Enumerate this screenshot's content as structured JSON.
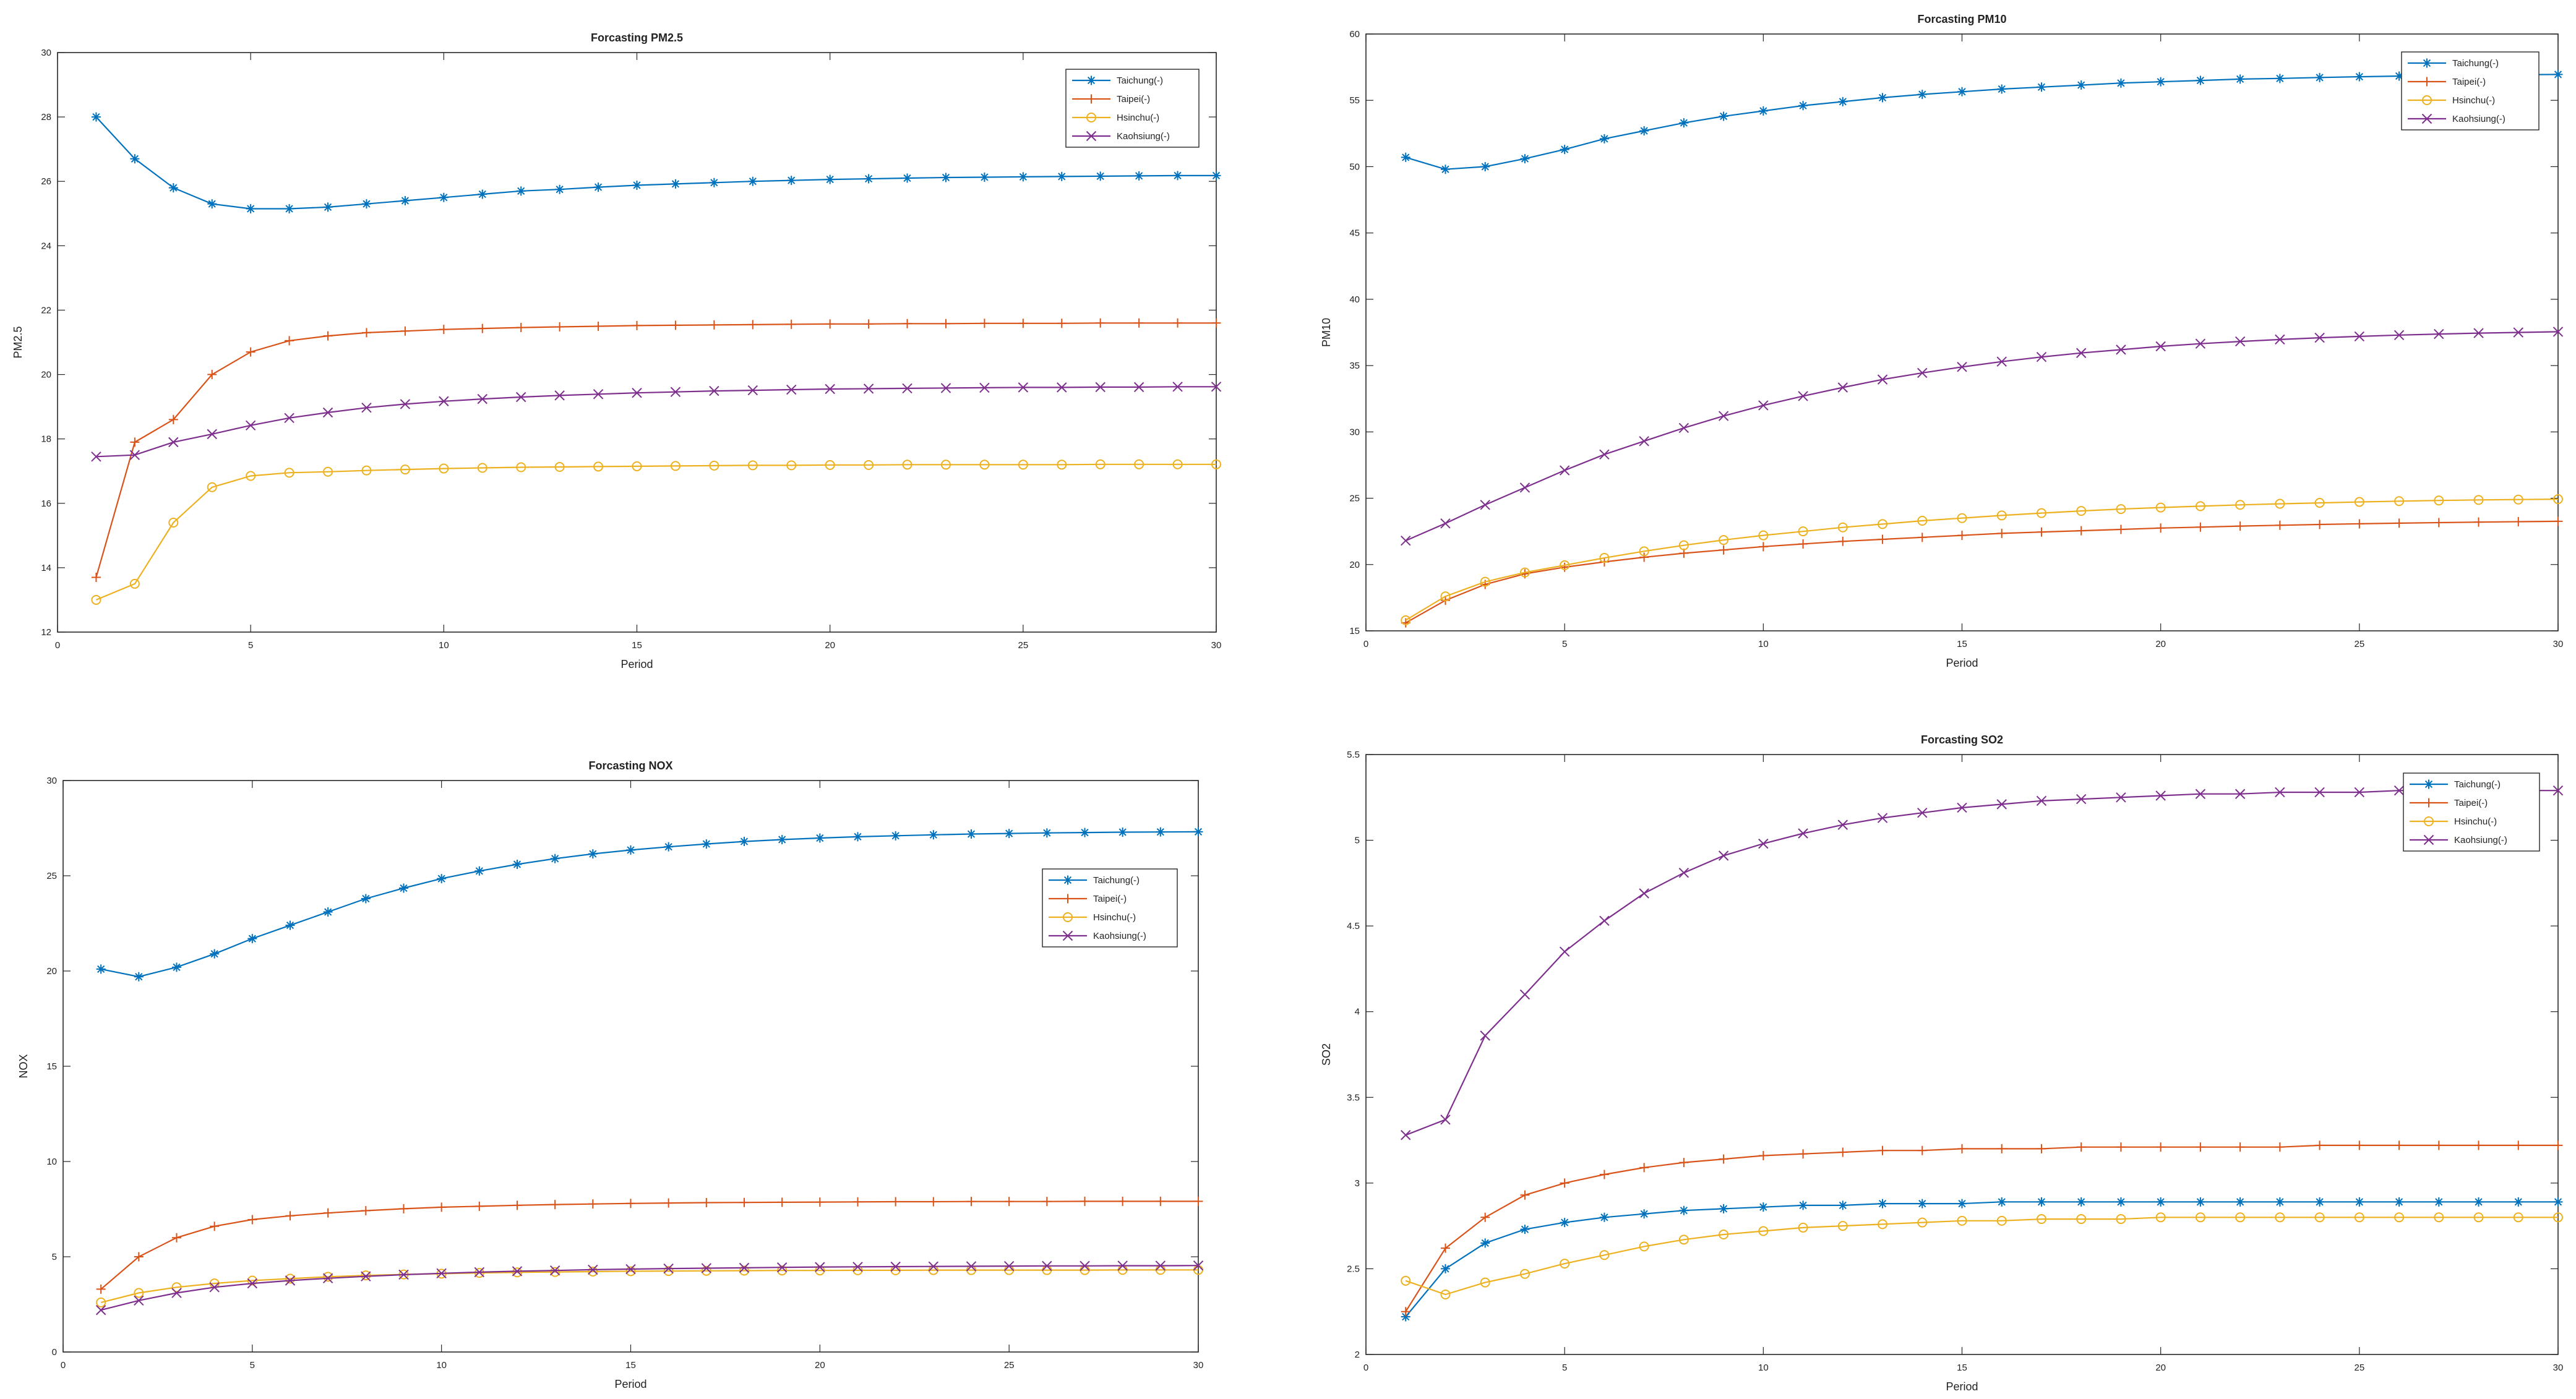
{
  "chart_data": [
    {
      "type": "line",
      "title": "Forcasting PM2.5",
      "xlabel": "Period",
      "ylabel": "PM2.5",
      "xlim": [
        0,
        30
      ],
      "ylim": [
        12,
        30
      ],
      "xticks": [
        0,
        5,
        10,
        15,
        20,
        25,
        30
      ],
      "yticks": [
        12,
        14,
        16,
        18,
        20,
        22,
        24,
        26,
        28,
        30
      ],
      "legend_position": "top-right",
      "x": [
        1,
        2,
        3,
        4,
        5,
        6,
        7,
        8,
        9,
        10,
        11,
        12,
        13,
        14,
        15,
        16,
        17,
        18,
        19,
        20,
        21,
        22,
        23,
        24,
        25,
        26,
        27,
        28,
        29,
        30
      ],
      "series": [
        {
          "name": "Taichung(-)",
          "color": "#0072BD",
          "marker": "asterisk",
          "values": [
            28.0,
            26.7,
            25.8,
            25.3,
            25.15,
            25.15,
            25.2,
            25.3,
            25.4,
            25.5,
            25.6,
            25.7,
            25.75,
            25.82,
            25.88,
            25.92,
            25.96,
            26.0,
            26.03,
            26.06,
            26.08,
            26.1,
            26.12,
            26.13,
            26.14,
            26.15,
            26.16,
            26.17,
            26.18,
            26.18
          ]
        },
        {
          "name": "Taipei(-)",
          "color": "#D95319",
          "marker": "plus",
          "values": [
            13.7,
            17.9,
            18.6,
            20.0,
            20.7,
            21.05,
            21.2,
            21.3,
            21.35,
            21.4,
            21.43,
            21.46,
            21.48,
            21.5,
            21.52,
            21.53,
            21.54,
            21.55,
            21.56,
            21.57,
            21.57,
            21.58,
            21.58,
            21.59,
            21.59,
            21.59,
            21.6,
            21.6,
            21.6,
            21.6
          ]
        },
        {
          "name": "Hsinchu(-)",
          "color": "#EDB120",
          "marker": "circle",
          "values": [
            13.0,
            13.5,
            15.4,
            16.5,
            16.85,
            16.95,
            16.98,
            17.02,
            17.05,
            17.08,
            17.1,
            17.12,
            17.13,
            17.14,
            17.15,
            17.16,
            17.17,
            17.18,
            17.18,
            17.19,
            17.19,
            17.2,
            17.2,
            17.2,
            17.2,
            17.2,
            17.21,
            17.21,
            17.21,
            17.21
          ]
        },
        {
          "name": "Kaohsiung(-)",
          "color": "#7E2F8E",
          "marker": "x",
          "values": [
            17.45,
            17.5,
            17.9,
            18.15,
            18.42,
            18.65,
            18.82,
            18.97,
            19.08,
            19.17,
            19.24,
            19.3,
            19.35,
            19.39,
            19.43,
            19.46,
            19.49,
            19.51,
            19.53,
            19.55,
            19.56,
            19.57,
            19.58,
            19.59,
            19.6,
            19.6,
            19.61,
            19.61,
            19.62,
            19.62
          ]
        }
      ]
    },
    {
      "type": "line",
      "title": "Forcasting PM10",
      "xlabel": "Period",
      "ylabel": "PM10",
      "xlim": [
        0,
        30
      ],
      "ylim": [
        15,
        60
      ],
      "xticks": [
        0,
        5,
        10,
        15,
        20,
        25,
        30
      ],
      "yticks": [
        15,
        20,
        25,
        30,
        35,
        40,
        45,
        50,
        55,
        60
      ],
      "legend_position": "top-right",
      "x": [
        1,
        2,
        3,
        4,
        5,
        6,
        7,
        8,
        9,
        10,
        11,
        12,
        13,
        14,
        15,
        16,
        17,
        18,
        19,
        20,
        21,
        22,
        23,
        24,
        25,
        26,
        27,
        28,
        29,
        30
      ],
      "series": [
        {
          "name": "Taichung(-)",
          "color": "#0072BD",
          "marker": "asterisk",
          "values": [
            50.7,
            49.8,
            50.0,
            50.6,
            51.3,
            52.1,
            52.7,
            53.3,
            53.8,
            54.2,
            54.6,
            54.9,
            55.2,
            55.45,
            55.65,
            55.85,
            56.0,
            56.15,
            56.3,
            56.4,
            56.5,
            56.6,
            56.65,
            56.72,
            56.78,
            56.83,
            56.87,
            56.9,
            56.93,
            56.95
          ]
        },
        {
          "name": "Taipei(-)",
          "color": "#D95319",
          "marker": "plus",
          "values": [
            15.6,
            17.3,
            18.5,
            19.3,
            19.8,
            20.2,
            20.55,
            20.85,
            21.1,
            21.35,
            21.55,
            21.75,
            21.9,
            22.05,
            22.2,
            22.35,
            22.45,
            22.55,
            22.65,
            22.75,
            22.82,
            22.9,
            22.96,
            23.02,
            23.07,
            23.12,
            23.16,
            23.2,
            23.23,
            23.26
          ]
        },
        {
          "name": "Hsinchu(-)",
          "color": "#EDB120",
          "marker": "circle",
          "values": [
            15.8,
            17.6,
            18.7,
            19.4,
            19.95,
            20.5,
            21.0,
            21.45,
            21.85,
            22.2,
            22.5,
            22.8,
            23.05,
            23.3,
            23.5,
            23.7,
            23.88,
            24.04,
            24.18,
            24.3,
            24.4,
            24.5,
            24.58,
            24.65,
            24.72,
            24.78,
            24.83,
            24.87,
            24.9,
            24.93
          ]
        },
        {
          "name": "Kaohsiung(-)",
          "color": "#7E2F8E",
          "marker": "x",
          "values": [
            21.8,
            23.1,
            24.5,
            25.8,
            27.1,
            28.3,
            29.3,
            30.3,
            31.2,
            32.0,
            32.7,
            33.35,
            33.95,
            34.45,
            34.9,
            35.3,
            35.65,
            35.95,
            36.2,
            36.45,
            36.65,
            36.82,
            36.97,
            37.1,
            37.2,
            37.3,
            37.38,
            37.45,
            37.5,
            37.55
          ]
        }
      ]
    },
    {
      "type": "line",
      "title": "Forcasting NOX",
      "xlabel": "Period",
      "ylabel": "NOX",
      "xlim": [
        0,
        30
      ],
      "ylim": [
        0,
        30
      ],
      "xticks": [
        0,
        5,
        10,
        15,
        20,
        25,
        30
      ],
      "yticks": [
        0,
        5,
        10,
        15,
        20,
        25,
        30
      ],
      "legend_position": "right",
      "x": [
        1,
        2,
        3,
        4,
        5,
        6,
        7,
        8,
        9,
        10,
        11,
        12,
        13,
        14,
        15,
        16,
        17,
        18,
        19,
        20,
        21,
        22,
        23,
        24,
        25,
        26,
        27,
        28,
        29,
        30
      ],
      "series": [
        {
          "name": "Taichung(-)",
          "color": "#0072BD",
          "marker": "asterisk",
          "values": [
            20.1,
            19.7,
            20.2,
            20.9,
            21.7,
            22.4,
            23.1,
            23.8,
            24.35,
            24.85,
            25.25,
            25.6,
            25.9,
            26.15,
            26.35,
            26.52,
            26.67,
            26.8,
            26.9,
            26.98,
            27.05,
            27.1,
            27.15,
            27.19,
            27.22,
            27.25,
            27.27,
            27.29,
            27.3,
            27.31
          ]
        },
        {
          "name": "Taipei(-)",
          "color": "#D95319",
          "marker": "plus",
          "values": [
            3.3,
            5.0,
            6.0,
            6.6,
            6.95,
            7.15,
            7.3,
            7.42,
            7.52,
            7.6,
            7.65,
            7.7,
            7.74,
            7.77,
            7.8,
            7.82,
            7.84,
            7.85,
            7.86,
            7.87,
            7.88,
            7.89,
            7.89,
            7.9,
            7.9,
            7.9,
            7.91,
            7.91,
            7.91,
            7.91
          ]
        },
        {
          "name": "Hsinchu(-)",
          "color": "#EDB120",
          "marker": "circle",
          "values": [
            2.6,
            3.1,
            3.4,
            3.6,
            3.75,
            3.85,
            3.95,
            4.02,
            4.07,
            4.11,
            4.15,
            4.18,
            4.2,
            4.22,
            4.24,
            4.25,
            4.26,
            4.27,
            4.28,
            4.28,
            4.29,
            4.29,
            4.3,
            4.3,
            4.3,
            4.3,
            4.3,
            4.31,
            4.31,
            4.31
          ]
        },
        {
          "name": "Kaohsiung(-)",
          "color": "#7E2F8E",
          "marker": "x",
          "values": [
            2.2,
            2.7,
            3.1,
            3.4,
            3.6,
            3.75,
            3.87,
            3.97,
            4.06,
            4.13,
            4.19,
            4.24,
            4.28,
            4.32,
            4.35,
            4.38,
            4.4,
            4.42,
            4.44,
            4.46,
            4.47,
            4.48,
            4.49,
            4.5,
            4.51,
            4.52,
            4.52,
            4.53,
            4.53,
            4.54
          ]
        }
      ]
    },
    {
      "type": "line",
      "title": "Forcasting SO2",
      "xlabel": "Period",
      "ylabel": "SO2",
      "xlim": [
        0,
        30
      ],
      "ylim": [
        2,
        5.5
      ],
      "xticks": [
        0,
        5,
        10,
        15,
        20,
        25,
        30
      ],
      "yticks": [
        2,
        2.5,
        3,
        3.5,
        4,
        4.5,
        5,
        5.5
      ],
      "legend_position": "top-right",
      "x": [
        1,
        2,
        3,
        4,
        5,
        6,
        7,
        8,
        9,
        10,
        11,
        12,
        13,
        14,
        15,
        16,
        17,
        18,
        19,
        20,
        21,
        22,
        23,
        24,
        25,
        26,
        27,
        28,
        29,
        30
      ],
      "series": [
        {
          "name": "Taichung(-)",
          "color": "#0072BD",
          "marker": "asterisk",
          "values": [
            2.22,
            2.5,
            2.65,
            2.73,
            2.77,
            2.8,
            2.82,
            2.84,
            2.85,
            2.86,
            2.87,
            2.87,
            2.88,
            2.88,
            2.88,
            2.89,
            2.89,
            2.89,
            2.89,
            2.89,
            2.89,
            2.89,
            2.89,
            2.89,
            2.89,
            2.89,
            2.89,
            2.89,
            2.89,
            2.89
          ]
        },
        {
          "name": "Taipei(-)",
          "color": "#D95319",
          "marker": "plus",
          "values": [
            2.25,
            2.62,
            2.8,
            2.93,
            3.0,
            3.05,
            3.09,
            3.12,
            3.14,
            3.16,
            3.17,
            3.18,
            3.19,
            3.19,
            3.2,
            3.2,
            3.2,
            3.21,
            3.21,
            3.21,
            3.21,
            3.21,
            3.21,
            3.22,
            3.22,
            3.22,
            3.22,
            3.22,
            3.22,
            3.22
          ]
        },
        {
          "name": "Hsinchu(-)",
          "color": "#EDB120",
          "marker": "circle",
          "values": [
            2.43,
            2.35,
            2.42,
            2.47,
            2.53,
            2.58,
            2.63,
            2.67,
            2.7,
            2.72,
            2.74,
            2.75,
            2.76,
            2.77,
            2.78,
            2.78,
            2.79,
            2.79,
            2.79,
            2.8,
            2.8,
            2.8,
            2.8,
            2.8,
            2.8,
            2.8,
            2.8,
            2.8,
            2.8,
            2.8
          ]
        },
        {
          "name": "Kaohsiung(-)",
          "color": "#7E2F8E",
          "marker": "x",
          "values": [
            3.28,
            3.37,
            3.86,
            4.1,
            4.35,
            4.53,
            4.69,
            4.81,
            4.91,
            4.98,
            5.04,
            5.09,
            5.13,
            5.16,
            5.19,
            5.21,
            5.23,
            5.24,
            5.25,
            5.26,
            5.27,
            5.27,
            5.28,
            5.28,
            5.28,
            5.29,
            5.29,
            5.29,
            5.29,
            5.29
          ]
        }
      ]
    }
  ]
}
